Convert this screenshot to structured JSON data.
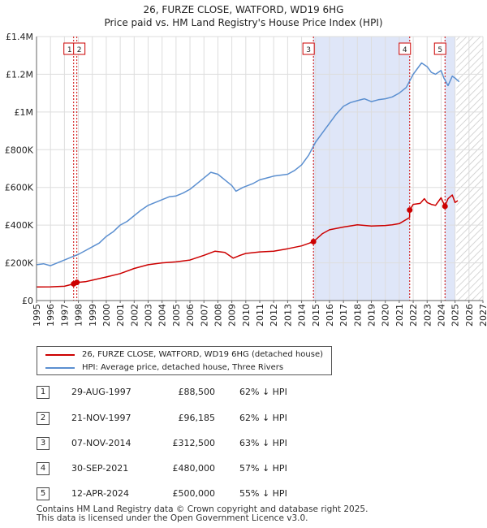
{
  "colors": {
    "property": "#cc0000",
    "hpi": "#5b8fd0",
    "shade": "#dfe6f8",
    "marker_line": "#cc0000",
    "grid": "#dddddd"
  },
  "chart_data": {
    "type": "line",
    "title": "26, FURZE CLOSE, WATFORD, WD19 6HG",
    "subtitle": "Price paid vs. HM Land Registry's House Price Index (HPI)",
    "xlabel": "",
    "ylabel": "",
    "xlim": [
      1995,
      2027
    ],
    "ylim": [
      0,
      1400000
    ],
    "y_ticks": [
      0,
      200000,
      400000,
      600000,
      800000,
      1000000,
      1200000,
      1400000
    ],
    "y_tick_labels": [
      "£0",
      "£200K",
      "£400K",
      "£600K",
      "£800K",
      "£1M",
      "£1.2M",
      "£1.4M"
    ],
    "x_ticks": [
      1995,
      1996,
      1997,
      1998,
      1999,
      2000,
      2001,
      2002,
      2003,
      2004,
      2005,
      2006,
      2007,
      2008,
      2009,
      2010,
      2011,
      2012,
      2013,
      2014,
      2015,
      2016,
      2017,
      2018,
      2019,
      2020,
      2021,
      2022,
      2023,
      2024,
      2025,
      2026,
      2027
    ],
    "shaded_ranges": [
      [
        2014.85,
        2021.75
      ],
      [
        2024.28,
        2025.0
      ]
    ],
    "hatch_from": 2025.1,
    "grid": true,
    "series": [
      {
        "name": "26, FURZE CLOSE, WATFORD, WD19 6HG (detached house)",
        "x": [
          1995.0,
          1996.0,
          1997.0,
          1997.66,
          1997.89,
          1998.5,
          1999.0,
          2000.0,
          2001.0,
          2002.0,
          2003.0,
          2004.0,
          2005.0,
          2006.0,
          2007.0,
          2007.8,
          2008.5,
          2009.1,
          2009.6,
          2010.0,
          2011.0,
          2012.0,
          2013.0,
          2014.0,
          2014.85,
          2015.5,
          2016.0,
          2017.0,
          2018.0,
          2019.0,
          2020.0,
          2020.5,
          2021.0,
          2021.74,
          2021.75,
          2022.0,
          2022.5,
          2022.8,
          2023.0,
          2023.3,
          2023.6,
          2024.0,
          2024.28,
          2024.5,
          2024.8,
          2025.0,
          2025.2
        ],
        "values": [
          72000,
          73000,
          76000,
          88500,
          96185,
          100000,
          108000,
          125000,
          143000,
          170000,
          190000,
          200000,
          205000,
          215000,
          240000,
          262000,
          255000,
          225000,
          240000,
          250000,
          258000,
          262000,
          275000,
          290000,
          312500,
          355000,
          375000,
          390000,
          402000,
          395000,
          398000,
          402000,
          408000,
          440000,
          480000,
          510000,
          515000,
          540000,
          520000,
          510000,
          505000,
          545000,
          500000,
          540000,
          560000,
          520000,
          530000
        ]
      },
      {
        "name": "HPI: Average price, detached house, Three Rivers",
        "x": [
          1995.0,
          1995.5,
          1996.0,
          1996.5,
          1997.0,
          1997.5,
          1998.0,
          1998.5,
          1999.0,
          1999.5,
          2000.0,
          2000.5,
          2001.0,
          2001.5,
          2002.0,
          2002.5,
          2003.0,
          2003.5,
          2004.0,
          2004.5,
          2005.0,
          2005.5,
          2006.0,
          2006.5,
          2007.0,
          2007.5,
          2008.0,
          2008.5,
          2009.0,
          2009.3,
          2009.8,
          2010.5,
          2011.0,
          2011.5,
          2012.0,
          2012.5,
          2013.0,
          2013.5,
          2014.0,
          2014.5,
          2015.0,
          2015.5,
          2016.0,
          2016.5,
          2017.0,
          2017.5,
          2018.0,
          2018.5,
          2019.0,
          2019.5,
          2020.0,
          2020.5,
          2021.0,
          2021.5,
          2022.0,
          2022.3,
          2022.6,
          2023.0,
          2023.3,
          2023.6,
          2024.0,
          2024.2,
          2024.5,
          2024.8,
          2025.0,
          2025.3
        ],
        "values": [
          190000,
          195000,
          185000,
          200000,
          215000,
          230000,
          245000,
          265000,
          285000,
          305000,
          340000,
          365000,
          400000,
          420000,
          450000,
          480000,
          505000,
          520000,
          535000,
          550000,
          555000,
          570000,
          590000,
          620000,
          650000,
          680000,
          670000,
          640000,
          610000,
          580000,
          600000,
          620000,
          640000,
          650000,
          660000,
          665000,
          670000,
          690000,
          720000,
          770000,
          840000,
          890000,
          940000,
          990000,
          1030000,
          1050000,
          1060000,
          1070000,
          1055000,
          1065000,
          1070000,
          1080000,
          1100000,
          1130000,
          1200000,
          1230000,
          1260000,
          1240000,
          1210000,
          1200000,
          1220000,
          1180000,
          1140000,
          1190000,
          1180000,
          1160000
        ]
      }
    ],
    "sales": [
      {
        "id": "1",
        "x": 1997.66,
        "y": 88500
      },
      {
        "id": "2",
        "x": 1997.89,
        "y": 96185
      },
      {
        "id": "3",
        "x": 2014.85,
        "y": 312500
      },
      {
        "id": "4",
        "x": 2021.75,
        "y": 480000
      },
      {
        "id": "5",
        "x": 2024.28,
        "y": 500000
      }
    ]
  },
  "legend": {
    "property": "26, FURZE CLOSE, WATFORD, WD19 6HG (detached house)",
    "hpi": "HPI: Average price, detached house, Three Rivers"
  },
  "transactions": [
    {
      "num": "1",
      "date": "29-AUG-1997",
      "price": "£88,500",
      "hpi": "62% ↓ HPI"
    },
    {
      "num": "2",
      "date": "21-NOV-1997",
      "price": "£96,185",
      "hpi": "62% ↓ HPI"
    },
    {
      "num": "3",
      "date": "07-NOV-2014",
      "price": "£312,500",
      "hpi": "63% ↓ HPI"
    },
    {
      "num": "4",
      "date": "30-SEP-2021",
      "price": "£480,000",
      "hpi": "57% ↓ HPI"
    },
    {
      "num": "5",
      "date": "12-APR-2024",
      "price": "£500,000",
      "hpi": "55% ↓ HPI"
    }
  ],
  "footer": {
    "line1": "Contains HM Land Registry data © Crown copyright and database right 2025.",
    "line2": "This data is licensed under the Open Government Licence v3.0."
  }
}
